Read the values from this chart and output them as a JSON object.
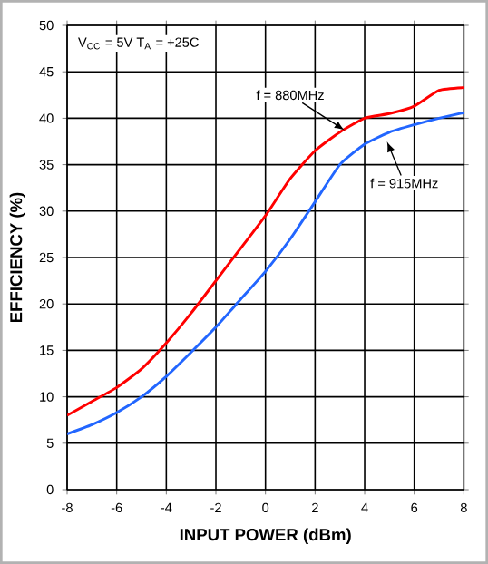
{
  "chart_data": {
    "type": "line",
    "xlabel": "INPUT POWER (dBm)",
    "ylabel": "EFFICIENCY (%)",
    "x": [
      -8,
      -7,
      -6,
      -5,
      -4,
      -3,
      -2,
      -1,
      0,
      1,
      2,
      3,
      4,
      5,
      6,
      7,
      8
    ],
    "series": [
      {
        "color": "#ff0000",
        "values": [
          8,
          9.5,
          11,
          13,
          15.8,
          19,
          22.5,
          26,
          29.5,
          33.5,
          36.5,
          38.5,
          40,
          40.5,
          41.3,
          43,
          43.3
        ]
      },
      {
        "color": "#2266ff",
        "values": [
          6,
          7,
          8.3,
          10,
          12.2,
          14.8,
          17.5,
          20.5,
          23.5,
          27,
          31,
          35,
          37.2,
          38.5,
          39.3,
          40,
          40.6
        ]
      }
    ],
    "xlim": [
      -8,
      8
    ],
    "ylim": [
      0,
      50
    ],
    "xticks": [
      -8,
      -6,
      -4,
      -2,
      0,
      2,
      4,
      6,
      8
    ],
    "yticks": [
      0,
      5,
      10,
      15,
      20,
      25,
      30,
      35,
      40,
      45,
      50
    ],
    "grid": true,
    "marker": "none",
    "line_style": "solid",
    "annotations": [
      "V$_{CC}$ = 5V T$_{A}$ = +25C",
      {
        "text": "f = 880MHz",
        "x": 3.2,
        "y": 38.7
      },
      {
        "text": "f = 915MHz",
        "x": 4.9,
        "y": 37.5
      }
    ]
  }
}
